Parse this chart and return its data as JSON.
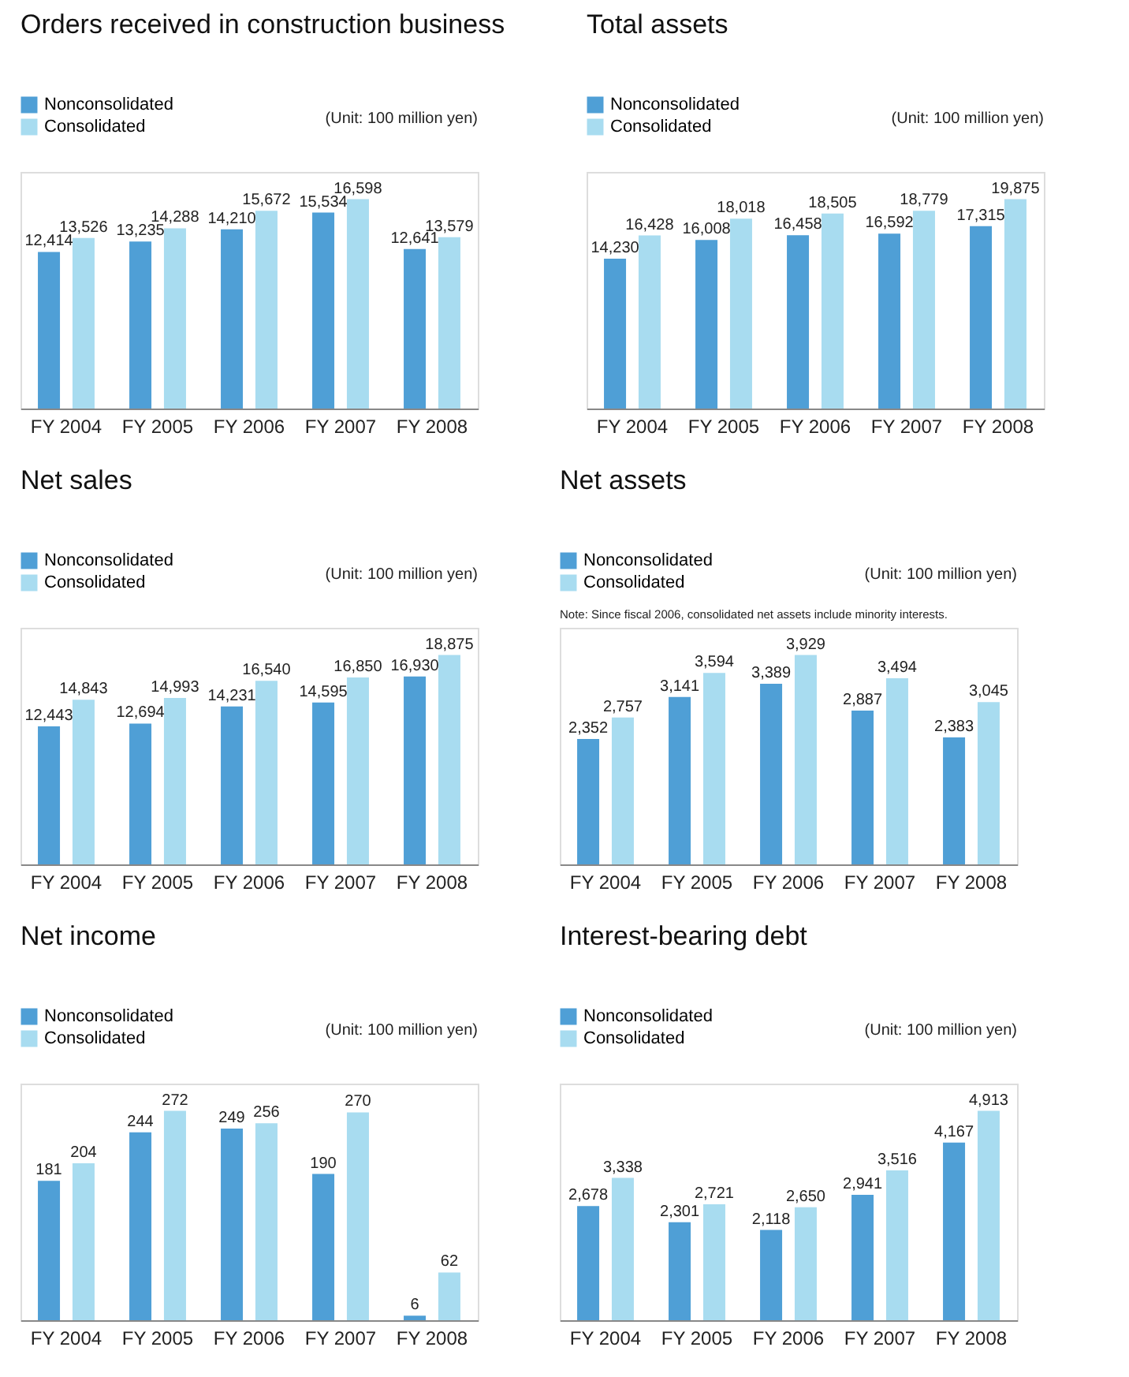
{
  "chart_data": [
    {
      "type": "bar",
      "title": "Orders received in construction business",
      "categories": [
        "FY 2004",
        "FY 2005",
        "FY 2006",
        "FY 2007",
        "FY 2008"
      ],
      "series": [
        {
          "name": "Nonconsolidated",
          "color": "#4f9fd6",
          "values": [
            12414,
            13235,
            14210,
            15534,
            12641
          ],
          "value_labels": [
            "12,414",
            "13,235",
            "14,210",
            "15,534",
            "12,641"
          ]
        },
        {
          "name": "Consolidated",
          "color": "#a8dcf0",
          "values": [
            13526,
            14288,
            15672,
            16598,
            13579
          ],
          "value_labels": [
            "13,526",
            "14,288",
            "15,672",
            "16,598",
            "13,579"
          ]
        }
      ],
      "legend": "top left",
      "annotations": [
        "(Unit: 100 million yen)"
      ]
    },
    {
      "type": "bar",
      "title": "Total assets",
      "categories": [
        "FY 2004",
        "FY 2005",
        "FY 2006",
        "FY 2007",
        "FY 2008"
      ],
      "series": [
        {
          "name": "Nonconsolidated",
          "color": "#4f9fd6",
          "values": [
            14230,
            16008,
            16458,
            16592,
            17315
          ],
          "value_labels": [
            "14,230",
            "16,008",
            "16,458",
            "16,592",
            "17,315"
          ]
        },
        {
          "name": "Consolidated",
          "color": "#a8dcf0",
          "values": [
            16428,
            18018,
            18505,
            18779,
            19875
          ],
          "value_labels": [
            "16,428",
            "18,018",
            "18,505",
            "18,779",
            "19,875"
          ]
        }
      ],
      "legend": "top left",
      "annotations": [
        "(Unit: 100 million yen)"
      ]
    },
    {
      "type": "bar",
      "title": "Net sales",
      "categories": [
        "FY 2004",
        "FY 2005",
        "FY 2006",
        "FY 2007",
        "FY 2008"
      ],
      "series": [
        {
          "name": "Nonconsolidated",
          "color": "#4f9fd6",
          "values": [
            12443,
            12694,
            14231,
            14595,
            16930
          ],
          "value_labels": [
            "12,443",
            "12,694",
            "14,231",
            "14,595",
            "16,930"
          ]
        },
        {
          "name": "Consolidated",
          "color": "#a8dcf0",
          "values": [
            14843,
            14993,
            16540,
            16850,
            18875
          ],
          "value_labels": [
            "14,843",
            "14,993",
            "16,540",
            "16,850",
            "18,875"
          ]
        }
      ],
      "legend": "top left",
      "annotations": [
        "(Unit: 100 million yen)"
      ]
    },
    {
      "type": "bar",
      "title": "Net assets",
      "categories": [
        "FY 2004",
        "FY 2005",
        "FY 2006",
        "FY 2007",
        "FY 2008"
      ],
      "series": [
        {
          "name": "Nonconsolidated",
          "color": "#4f9fd6",
          "values": [
            2352,
            3141,
            3389,
            2887,
            2383
          ],
          "value_labels": [
            "2,352",
            "3,141",
            "3,389",
            "2,887",
            "2,383"
          ]
        },
        {
          "name": "Consolidated",
          "color": "#a8dcf0",
          "values": [
            2757,
            3594,
            3929,
            3494,
            3045
          ],
          "value_labels": [
            "2,757",
            "3,594",
            "3,929",
            "3,494",
            "3,045"
          ]
        }
      ],
      "legend": "top left",
      "annotations": [
        "(Unit: 100 million yen)",
        "Note: Since fiscal 2006, consolidated net assets include minority interests."
      ]
    },
    {
      "type": "bar",
      "title": "Net income",
      "categories": [
        "FY 2004",
        "FY 2005",
        "FY 2006",
        "FY 2007",
        "FY 2008"
      ],
      "series": [
        {
          "name": "Nonconsolidated",
          "color": "#4f9fd6",
          "values": [
            181,
            244,
            249,
            190,
            6
          ],
          "value_labels": [
            "181",
            "244",
            "249",
            "190",
            "6"
          ]
        },
        {
          "name": "Consolidated",
          "color": "#a8dcf0",
          "values": [
            204,
            272,
            256,
            270,
            62
          ],
          "value_labels": [
            "204",
            "272",
            "256",
            "270",
            "62"
          ]
        }
      ],
      "legend": "top left",
      "annotations": [
        "(Unit: 100 million yen)"
      ]
    },
    {
      "type": "bar",
      "title": "Interest-bearing debt",
      "categories": [
        "FY 2004",
        "FY 2005",
        "FY 2006",
        "FY 2007",
        "FY 2008"
      ],
      "series": [
        {
          "name": "Nonconsolidated",
          "color": "#4f9fd6",
          "values": [
            2678,
            2301,
            2118,
            2941,
            4167
          ],
          "value_labels": [
            "2,678",
            "2,301",
            "2,118",
            "2,941",
            "4,167"
          ]
        },
        {
          "name": "Consolidated",
          "color": "#a8dcf0",
          "values": [
            3338,
            2721,
            2650,
            3516,
            4913
          ],
          "value_labels": [
            "3,338",
            "2,721",
            "2,650",
            "3,516",
            "4,913"
          ]
        }
      ],
      "legend": "top left",
      "annotations": [
        "(Unit: 100 million yen)"
      ]
    }
  ]
}
